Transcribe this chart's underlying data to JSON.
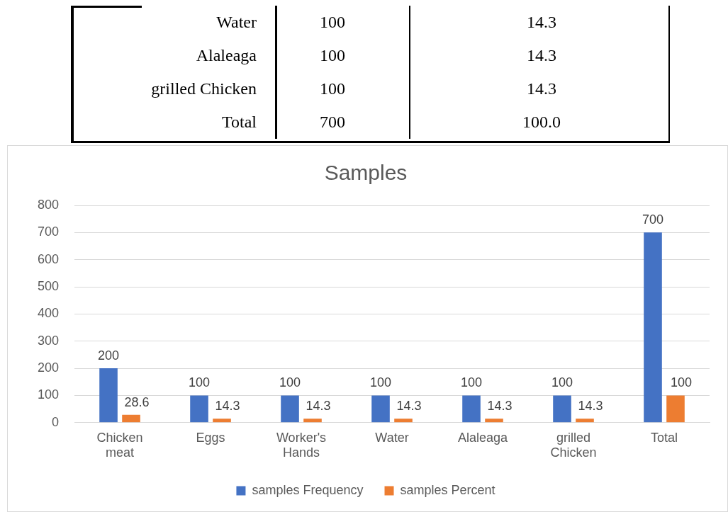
{
  "chart_data": [
    {
      "type": "other",
      "annotations": [
        "Water",
        "100",
        "14.3",
        "Alaleaga",
        "100",
        "14.3",
        "grilled Chicken",
        "100",
        "14.3",
        "Total",
        "700",
        "100.0"
      ]
    },
    {
      "type": "bar",
      "title": "Samples",
      "categories": [
        "Chicken meat",
        "Eggs",
        "Worker's Hands",
        "Water",
        "Alaleaga",
        "grilled Chicken",
        "Total"
      ],
      "series": [
        {
          "name": "samples Frequency",
          "color": "#4472c4",
          "values": [
            200,
            100,
            100,
            100,
            100,
            100,
            700
          ]
        },
        {
          "name": "samples Percent",
          "color": "#ed7d31",
          "values": [
            28.6,
            14.3,
            14.3,
            14.3,
            14.3,
            14.3,
            100
          ]
        }
      ],
      "ylim": [
        0,
        800
      ],
      "yticks": [
        0,
        100,
        200,
        300,
        400,
        500,
        600,
        700,
        800
      ],
      "grid": "y",
      "legend": "bottom",
      "data_labels": true
    }
  ]
}
